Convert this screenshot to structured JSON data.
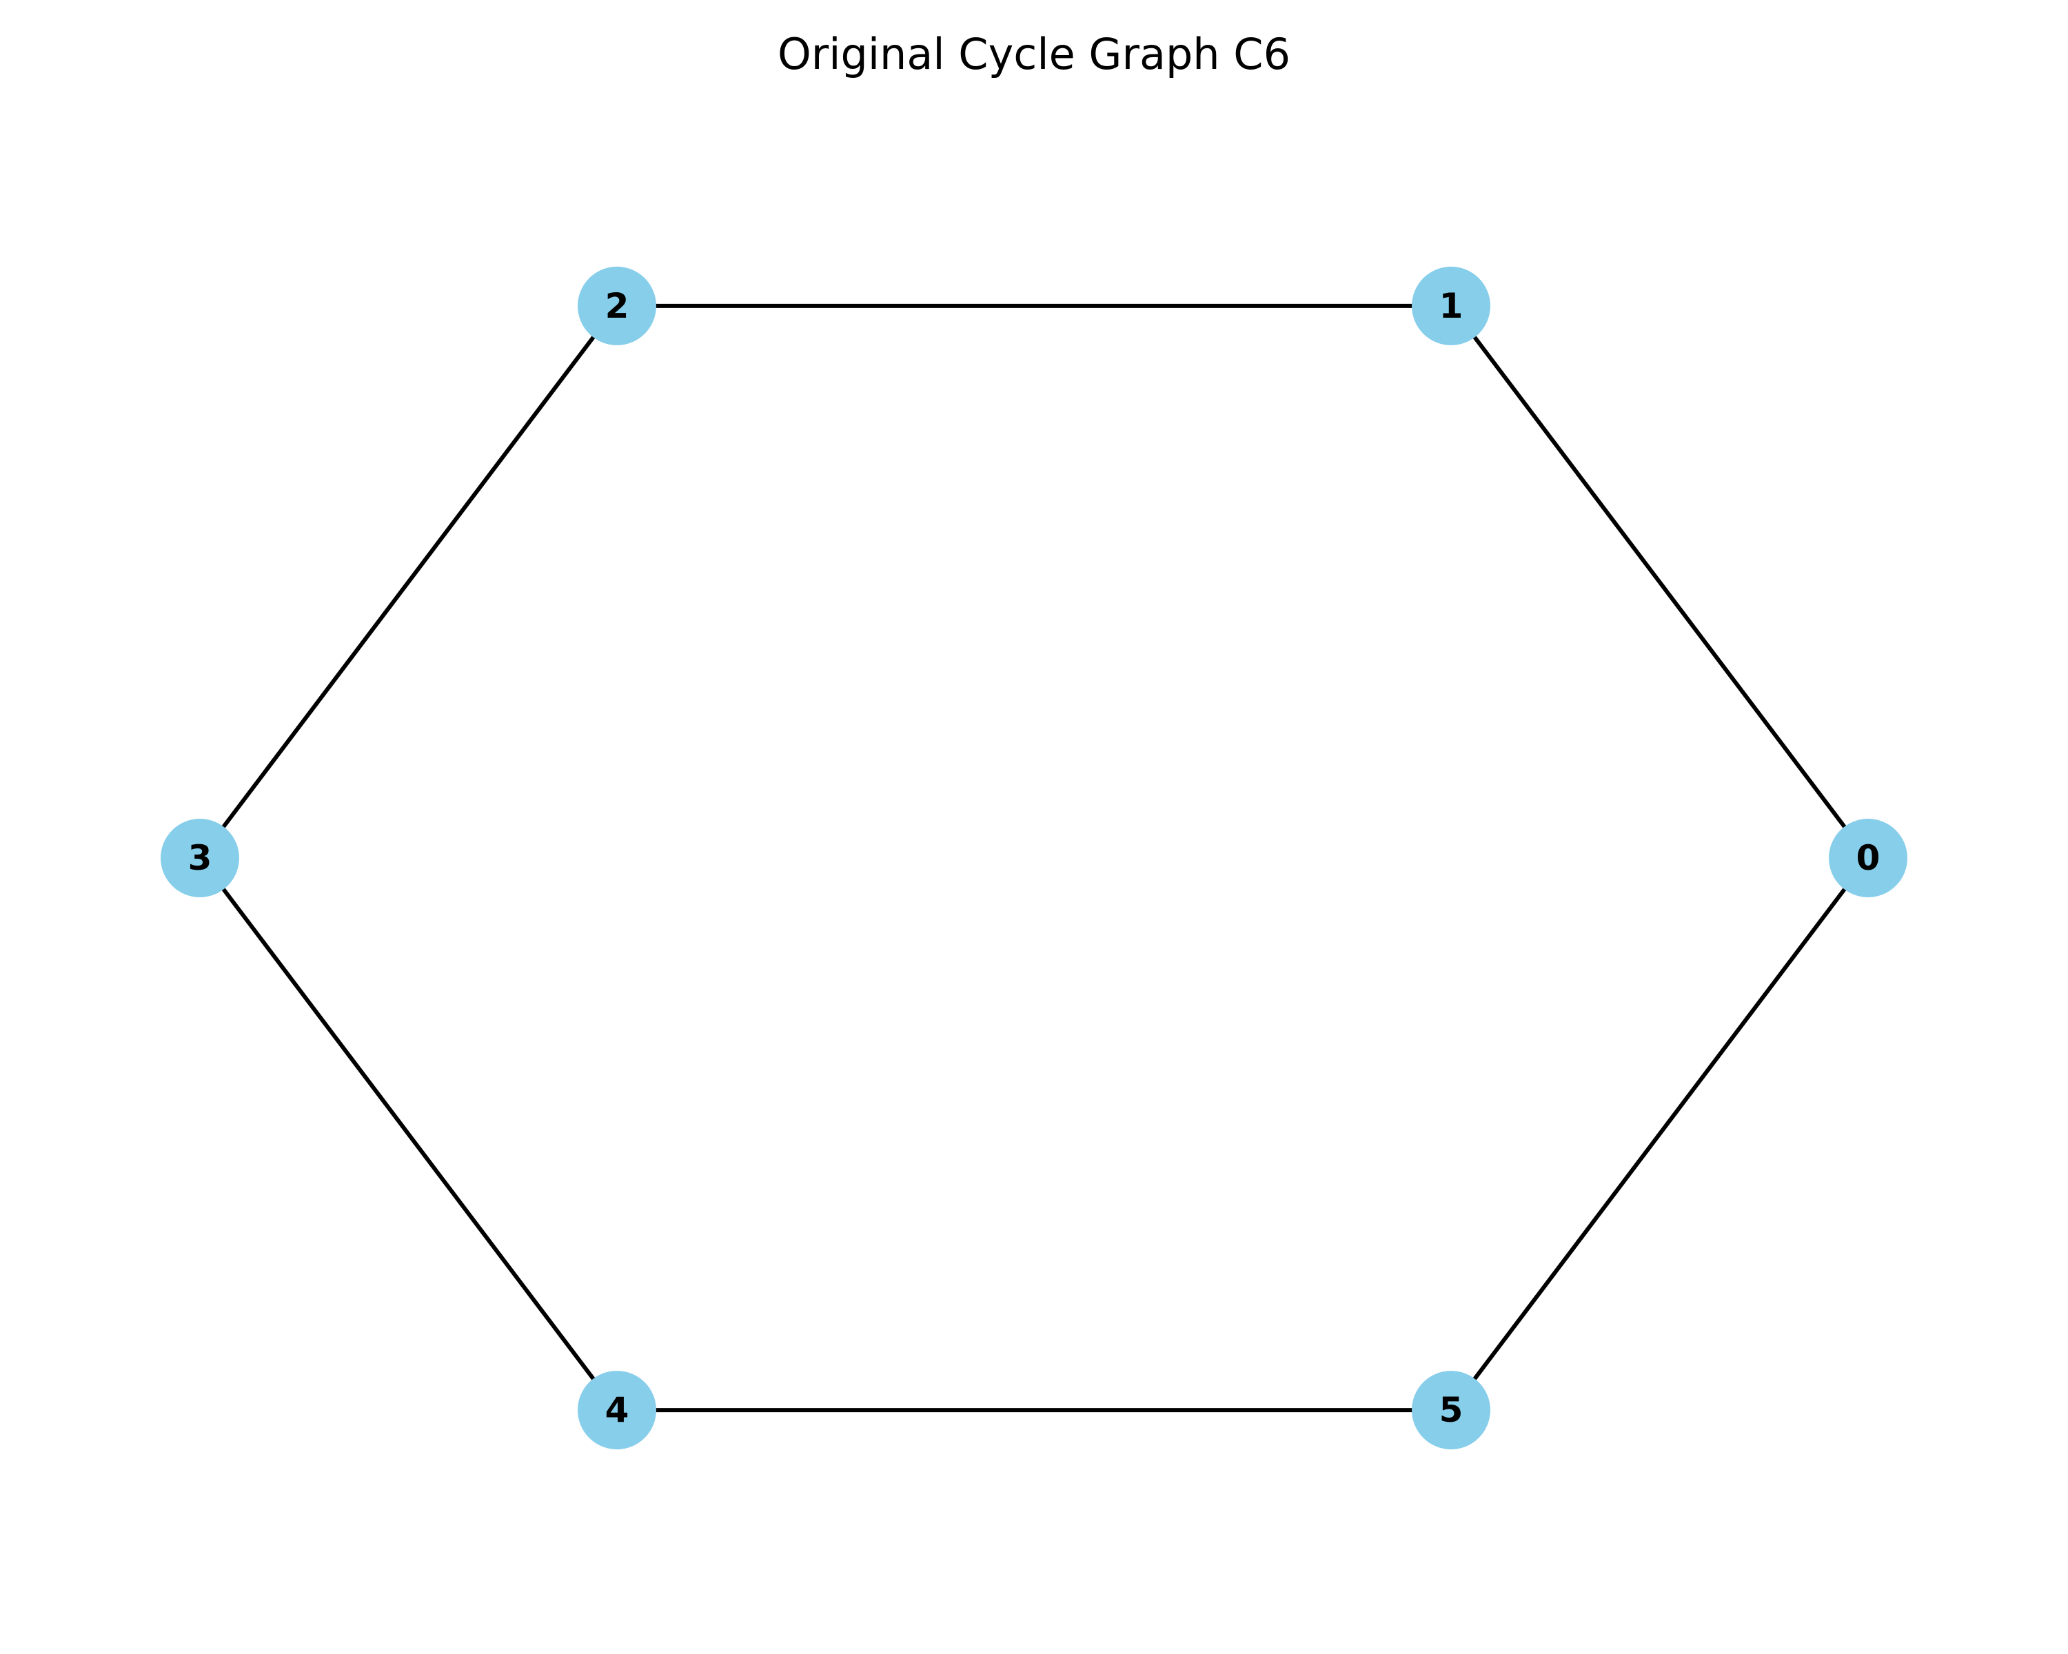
{
  "title": "Original Cycle Graph C6",
  "colors": {
    "node_fill": "#87CEEB",
    "edge": "#000000",
    "label": "#000000",
    "background": "#FFFFFF"
  },
  "graph": {
    "type": "cycle",
    "name": "C6",
    "nodes": [
      {
        "id": 0,
        "label": "0"
      },
      {
        "id": 1,
        "label": "1"
      },
      {
        "id": 2,
        "label": "2"
      },
      {
        "id": 3,
        "label": "3"
      },
      {
        "id": 4,
        "label": "4"
      },
      {
        "id": 5,
        "label": "5"
      }
    ],
    "edges": [
      [
        0,
        1
      ],
      [
        1,
        2
      ],
      [
        2,
        3
      ],
      [
        3,
        4
      ],
      [
        4,
        5
      ],
      [
        5,
        0
      ]
    ]
  }
}
